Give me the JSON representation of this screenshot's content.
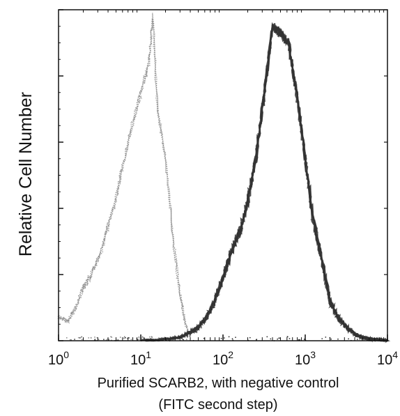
{
  "chart_data": {
    "type": "area",
    "title": "",
    "xlabel_line1": "Purified SCARB2, with negative control",
    "xlabel_line2": "(FITC second step)",
    "ylabel": "Relative Cell Number",
    "x_scale": "log",
    "xlim": [
      1,
      10000
    ],
    "ylim": [
      0,
      100
    ],
    "x_ticks": [
      {
        "base": "10",
        "exp": "0"
      },
      {
        "base": "10",
        "exp": "1"
      },
      {
        "base": "10",
        "exp": "2"
      },
      {
        "base": "10",
        "exp": "3"
      },
      {
        "base": "10",
        "exp": "4"
      }
    ],
    "y_major_tick_count": 5,
    "grid": false,
    "legend": "none",
    "series": [
      {
        "style": "light-gray-dotted",
        "color": "#8a8a8a",
        "x": [
          1.0,
          1.3,
          1.6,
          2.0,
          2.5,
          3.2,
          4.0,
          5.0,
          6.3,
          8.0,
          10.0,
          12.6,
          14.0,
          16.0,
          20.0,
          25.0,
          30.0,
          35.0,
          40.0
        ],
        "y": [
          7,
          6,
          10,
          16,
          20,
          26,
          35,
          43,
          55,
          66,
          75,
          84,
          98,
          70,
          55,
          30,
          14,
          5,
          1
        ]
      },
      {
        "style": "dark-gray-dense",
        "color": "#333333",
        "x": [
          10,
          20,
          30,
          40,
          50,
          63,
          80,
          100,
          126,
          160,
          200,
          250,
          320,
          400,
          500,
          630,
          800,
          1000,
          1260,
          1600,
          2000,
          2500,
          3200,
          4000,
          5000,
          6300,
          8000,
          10000
        ],
        "y": [
          0,
          0.5,
          1,
          2.5,
          4,
          7,
          12,
          19,
          27,
          33,
          42,
          55,
          75,
          95,
          93,
          90,
          73,
          55,
          36,
          24,
          12,
          7,
          4,
          2,
          1,
          0.5,
          0.3,
          0
        ]
      }
    ]
  }
}
